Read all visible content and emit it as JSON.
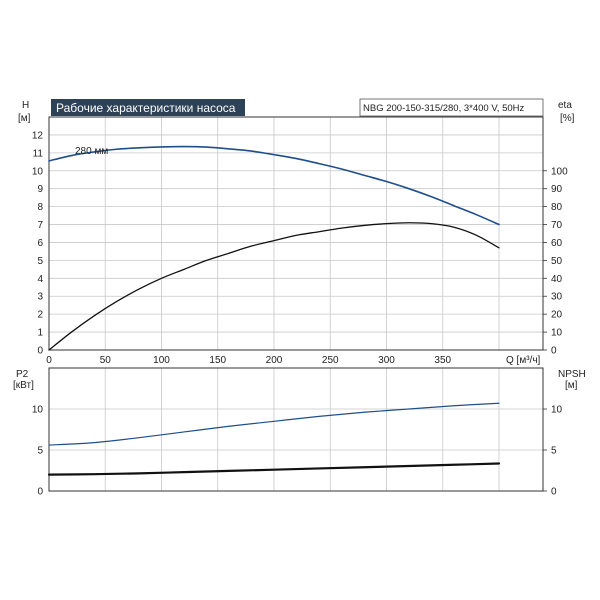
{
  "chart_data": [
    {
      "type": "line",
      "title": "Рабочие характеристики насоса",
      "model_label": "NBG 200-150-315/280, 3*400 V, 50Hz",
      "xlabel": "Q [м³/ч]",
      "x_ticks": [
        "0",
        "50",
        "100",
        "150",
        "200",
        "250",
        "300",
        "350"
      ],
      "xlim": [
        0,
        400
      ],
      "left_axis": {
        "label_top": "H",
        "label_unit": "[м]",
        "lim": [
          0,
          13
        ],
        "ticks": [
          "0",
          "1",
          "2",
          "3",
          "4",
          "5",
          "6",
          "7",
          "8",
          "9",
          "10",
          "11",
          "12"
        ]
      },
      "right_axis": {
        "label_top": "eta",
        "label_unit": "[%]",
        "lim": [
          0,
          130
        ],
        "ticks": [
          "0",
          "10",
          "20",
          "30",
          "40",
          "50",
          "60",
          "70",
          "80",
          "90",
          "100"
        ]
      },
      "grid": true,
      "series": [
        {
          "name": "280 мм",
          "axis": "left",
          "color": "#1f4e8c",
          "x": [
            0,
            20,
            40,
            60,
            80,
            100,
            120,
            140,
            160,
            180,
            200,
            220,
            240,
            260,
            280,
            300,
            320,
            340,
            360,
            380,
            400
          ],
          "y": [
            10.55,
            10.85,
            11.05,
            11.2,
            11.28,
            11.33,
            11.35,
            11.32,
            11.22,
            11.1,
            10.9,
            10.68,
            10.4,
            10.1,
            9.75,
            9.4,
            9.0,
            8.55,
            8.05,
            7.55,
            7.0
          ]
        },
        {
          "axis": "right",
          "color": "#111111",
          "x": [
            0,
            20,
            40,
            60,
            80,
            100,
            120,
            140,
            160,
            180,
            200,
            220,
            240,
            260,
            280,
            300,
            320,
            340,
            360,
            380,
            400
          ],
          "y": [
            0,
            10,
            19,
            27,
            34,
            40,
            45,
            50,
            54,
            58,
            61,
            64,
            66,
            68,
            69.5,
            70.5,
            71,
            70.5,
            68.5,
            64,
            57
          ]
        }
      ]
    },
    {
      "type": "line",
      "xlim": [
        0,
        400
      ],
      "left_axis": {
        "label_top": "P2",
        "label_unit": "[кВт]",
        "lim": [
          0,
          15
        ],
        "ticks": [
          "0",
          "5",
          "10"
        ]
      },
      "right_axis": {
        "label_top": "NPSH",
        "label_unit": "[м]",
        "lim": [
          0,
          15
        ],
        "ticks": [
          "0",
          "5",
          "10"
        ]
      },
      "grid": true,
      "series": [
        {
          "axis": "left",
          "color": "#1f4e8c",
          "x": [
            0,
            40,
            80,
            120,
            160,
            200,
            240,
            280,
            320,
            360,
            400
          ],
          "y": [
            5.6,
            5.9,
            6.5,
            7.2,
            7.9,
            8.5,
            9.1,
            9.6,
            10.0,
            10.4,
            10.7
          ]
        },
        {
          "axis": "right",
          "color": "#111111",
          "x": [
            0,
            40,
            80,
            120,
            160,
            200,
            240,
            280,
            320,
            360,
            400
          ],
          "y": [
            2.0,
            2.05,
            2.15,
            2.3,
            2.45,
            2.6,
            2.75,
            2.9,
            3.05,
            3.2,
            3.35
          ]
        }
      ]
    }
  ]
}
